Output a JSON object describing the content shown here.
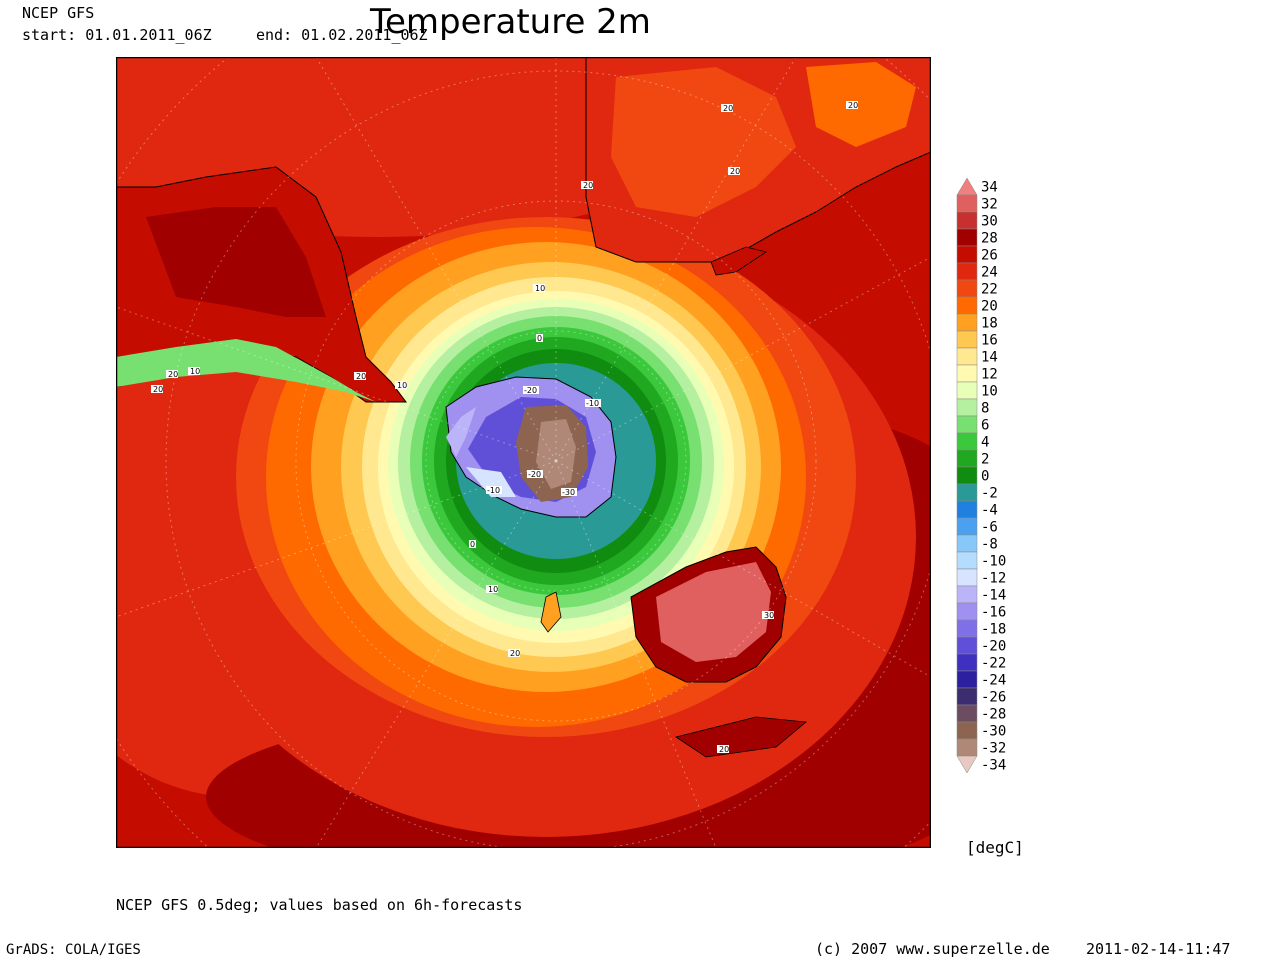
{
  "header": {
    "source": "NCEP GFS",
    "start": "start: 01.01.2011_06Z",
    "end": "end: 01.02.2011_06Z",
    "title": "Temperature 2m"
  },
  "legend": {
    "unit": "[degC]",
    "levels": [
      {
        "label": "34",
        "color": "#f08080"
      },
      {
        "label": "32",
        "color": "#e06060"
      },
      {
        "label": "30",
        "color": "#c83030"
      },
      {
        "label": "28",
        "color": "#a00000"
      },
      {
        "label": "26",
        "color": "#c40c00"
      },
      {
        "label": "24",
        "color": "#e02810"
      },
      {
        "label": "22",
        "color": "#f04810"
      },
      {
        "label": "20",
        "color": "#ff6a00"
      },
      {
        "label": "18",
        "color": "#ffa020"
      },
      {
        "label": "16",
        "color": "#ffc850"
      },
      {
        "label": "14",
        "color": "#ffe890"
      },
      {
        "label": "12",
        "color": "#fffab0"
      },
      {
        "label": "10",
        "color": "#e8ffb8"
      },
      {
        "label": "8",
        "color": "#b4f0a0"
      },
      {
        "label": "6",
        "color": "#78e070"
      },
      {
        "label": "4",
        "color": "#3cc83c"
      },
      {
        "label": "2",
        "color": "#20a820"
      },
      {
        "label": "0",
        "color": "#108c10"
      },
      {
        "label": "-2",
        "color": "#2a9a96"
      },
      {
        "label": "-4",
        "color": "#2080e0"
      },
      {
        "label": "-6",
        "color": "#4ca0f0"
      },
      {
        "label": "-8",
        "color": "#88c8f8"
      },
      {
        "label": "-10",
        "color": "#b4dcfc"
      },
      {
        "label": "-12",
        "color": "#d6e4ff"
      },
      {
        "label": "-14",
        "color": "#bcb4f8"
      },
      {
        "label": "-16",
        "color": "#a090f0"
      },
      {
        "label": "-18",
        "color": "#8070e8"
      },
      {
        "label": "-20",
        "color": "#6050d8"
      },
      {
        "label": "-22",
        "color": "#4030c0"
      },
      {
        "label": "-24",
        "color": "#2c20a0"
      },
      {
        "label": "-26",
        "color": "#3c2c70"
      },
      {
        "label": "-28",
        "color": "#6c4c60"
      },
      {
        "label": "-30",
        "color": "#8c6450"
      },
      {
        "label": "-32",
        "color": "#b08878"
      },
      {
        "label": "-34",
        "color": "#e8c8c0"
      }
    ]
  },
  "map": {
    "contour_labels": {
      "ring20": "20",
      "ring10": "10",
      "ring0": "0",
      "m10": "-10",
      "m20": "-20",
      "m30": "-30",
      "p30": "30"
    }
  },
  "footer": {
    "note": "NCEP GFS 0.5deg; values based on 6h-forecasts",
    "grads": "GrADS: COLA/IGES",
    "copyright": "(c) 2007 www.superzelle.de",
    "timestamp": "2011-02-14-11:47"
  }
}
